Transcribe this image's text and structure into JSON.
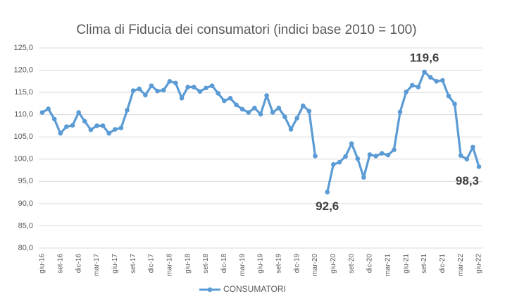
{
  "chart_data": {
    "type": "line",
    "title": "Clima di Fiducia dei consumatori (indici base 2010 = 100)",
    "categories": [
      "giu-16",
      null,
      null,
      "set-16",
      null,
      null,
      "dic-16",
      null,
      null,
      "mar-17",
      null,
      null,
      "giu-17",
      null,
      null,
      "set-17",
      null,
      null,
      "dic-17",
      null,
      null,
      "mar-18",
      null,
      null,
      "giu-18",
      null,
      null,
      "set-18",
      null,
      null,
      "dic-18",
      null,
      null,
      "mar-19",
      null,
      null,
      "giu-19",
      null,
      null,
      "set-19",
      null,
      null,
      "dic-19",
      null,
      null,
      "mar-20",
      null,
      null,
      "giu-20",
      null,
      null,
      "set-20",
      null,
      null,
      "dic-20",
      null,
      null,
      "mar-21",
      null,
      null,
      "giu-21",
      null,
      null,
      "set-21",
      null,
      null,
      "dic-21",
      null,
      null,
      "mar-22",
      null,
      null,
      "giu-22"
    ],
    "series": [
      {
        "name": "CONSUMATORI",
        "color": "#5b9bd5",
        "values": [
          110.5,
          111.3,
          109.0,
          105.8,
          107.3,
          107.6,
          110.5,
          108.5,
          106.6,
          107.5,
          107.5,
          105.8,
          106.7,
          107.0,
          111.0,
          115.4,
          115.8,
          114.4,
          116.5,
          115.3,
          115.5,
          117.5,
          117.1,
          113.7,
          116.2,
          116.2,
          115.2,
          116.0,
          116.5,
          114.8,
          113.1,
          113.7,
          112.2,
          111.2,
          110.5,
          111.5,
          110.1,
          114.3,
          110.5,
          111.5,
          109.5,
          106.7,
          109.2,
          112.0,
          110.8,
          100.7,
          null,
          92.6,
          98.8,
          99.3,
          100.6,
          103.5,
          100.1,
          95.9,
          101.0,
          100.7,
          101.3,
          100.9,
          102.1,
          110.6,
          115.1,
          116.6,
          116.2,
          119.6,
          118.4,
          117.5,
          117.7,
          114.2,
          112.4,
          100.8,
          100.0,
          102.7,
          98.3
        ],
        "value_labels": [
          null,
          null,
          null,
          null,
          null,
          null,
          null,
          null,
          null,
          null,
          null,
          null,
          null,
          null,
          null,
          null,
          null,
          null,
          null,
          null,
          null,
          null,
          null,
          null,
          null,
          null,
          null,
          null,
          null,
          null,
          null,
          null,
          null,
          null,
          null,
          null,
          null,
          null,
          null,
          null,
          null,
          null,
          null,
          null,
          null,
          null,
          null,
          "92,6",
          null,
          null,
          null,
          null,
          null,
          null,
          null,
          null,
          null,
          null,
          null,
          null,
          null,
          null,
          null,
          "119,6",
          null,
          null,
          null,
          null,
          null,
          null,
          null,
          null,
          "98,3"
        ]
      }
    ],
    "ylim": [
      80,
      125
    ],
    "yticks": [
      {
        "value": 80,
        "label": "80,0"
      },
      {
        "value": 85,
        "label": "85,0"
      },
      {
        "value": 90,
        "label": "90,0"
      },
      {
        "value": 95,
        "label": "95,0"
      },
      {
        "value": 100,
        "label": "100,0"
      },
      {
        "value": 105,
        "label": "105,0"
      },
      {
        "value": 110,
        "label": "110,0"
      },
      {
        "value": 115,
        "label": "115,0"
      },
      {
        "value": 120,
        "label": "120,0"
      },
      {
        "value": 125,
        "label": "125,0"
      }
    ],
    "grid": true,
    "legend": "bottom"
  }
}
